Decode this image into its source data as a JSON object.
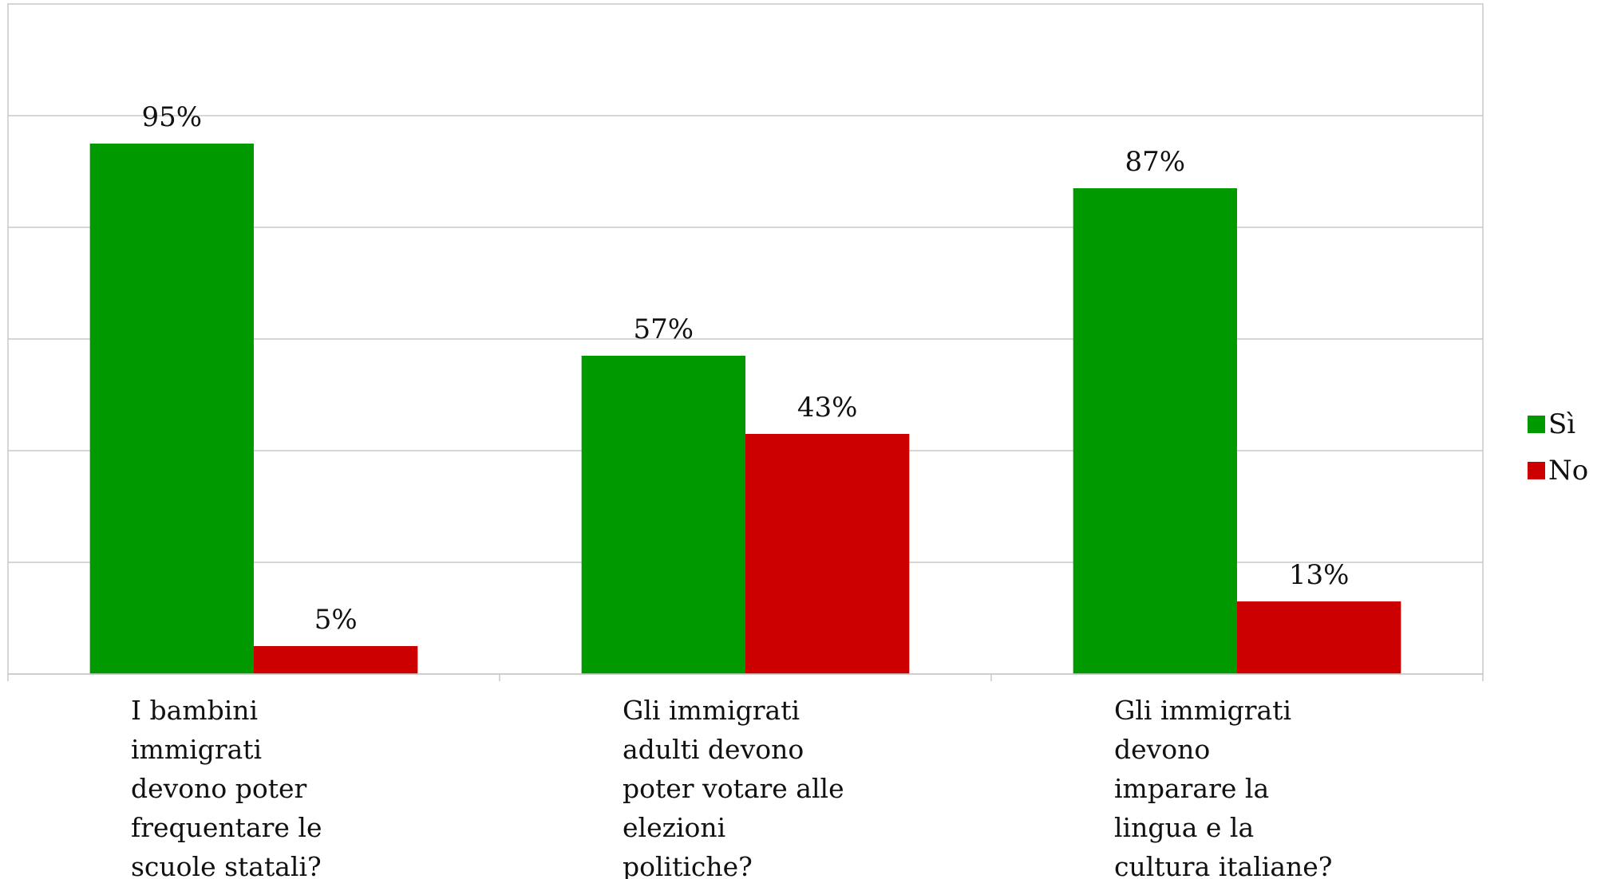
{
  "chart_data": {
    "type": "bar",
    "categories": [
      [
        "I bambini",
        "immigrati",
        "devono poter",
        "frequentare le",
        "scuole statali?"
      ],
      [
        "Gli immigrati",
        "adulti devono",
        "poter votare alle",
        "elezioni",
        "politiche?"
      ],
      [
        "Gli immigrati",
        "devono",
        "imparare la",
        "lingua e la",
        "cultura italiane?"
      ]
    ],
    "series": [
      {
        "name": "Sì",
        "values": [
          95,
          57,
          87
        ],
        "labels": [
          "95%",
          "57%",
          "87%"
        ],
        "color": "#009900"
      },
      {
        "name": "No",
        "values": [
          5,
          43,
          13
        ],
        "labels": [
          "5%",
          "43%",
          "13%"
        ],
        "color": "#cc0000"
      }
    ],
    "ylim": [
      0,
      120
    ],
    "grid": true,
    "legend_position": "right"
  }
}
